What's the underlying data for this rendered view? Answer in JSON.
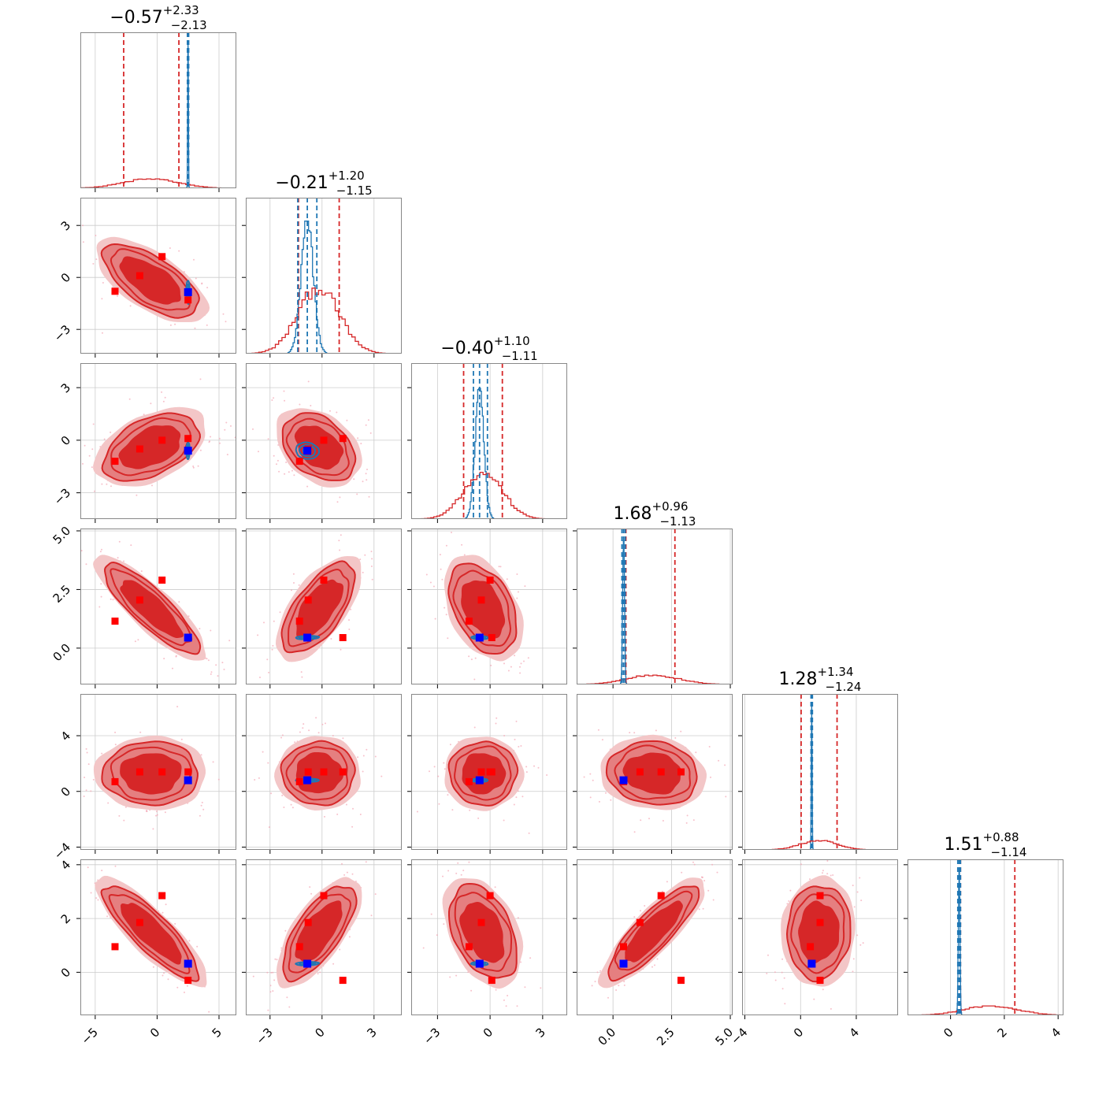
{
  "chart_data": {
    "type": "corner",
    "grid": true,
    "colors": {
      "samples_a": "#d62728",
      "samples_a_fill_inner": "#d62728",
      "samples_a_fill_mid": "#e57f80",
      "samples_a_fill_outer": "#f3c6c7",
      "samples_b": "#1f77b4",
      "truth_a": "#ff0000",
      "truth_b": "#0000ff",
      "axis": "#888888",
      "gridline": "#cccccc"
    },
    "parameters": [
      {
        "id": "p1",
        "title_value": "−0.57",
        "title_plus": "+2.33",
        "title_minus": "−2.13",
        "range": [
          -6.2,
          6.4
        ],
        "ticks": [
          -5,
          0,
          5
        ],
        "tick_labels": [
          "−5",
          "0",
          "5"
        ],
        "median": -0.57,
        "q_low": -2.7,
        "q_high": 1.76,
        "b_median": 2.5,
        "b_q_low": 2.45,
        "b_q_high": 2.55,
        "a_mean": -0.5,
        "a_sd": 2.2,
        "b_mean": 2.5,
        "b_sd": 0.03,
        "truth_a": [
          -3.4,
          -1.4,
          0.4,
          2.5
        ],
        "truth_b": 2.5
      },
      {
        "id": "p2",
        "title_value": "−0.21",
        "title_plus": "+1.20",
        "title_minus": "−1.15",
        "range": [
          -4.4,
          4.6
        ],
        "ticks": [
          -3,
          0,
          3
        ],
        "tick_labels": [
          "−3",
          "0",
          "3"
        ],
        "median": -0.21,
        "q_low": -1.36,
        "q_high": 0.99,
        "b_median": -0.85,
        "b_q_low": -1.4,
        "b_q_high": -0.3,
        "a_mean": -0.2,
        "a_sd": 1.2,
        "b_mean": -0.85,
        "b_sd": 0.35,
        "truth_a": [
          -1.3,
          -0.8,
          0.1,
          1.2
        ],
        "truth_b": -0.85
      },
      {
        "id": "p3",
        "title_value": "−0.40",
        "title_plus": "+1.10",
        "title_minus": "−1.11",
        "range": [
          -4.5,
          4.4
        ],
        "ticks": [
          -3,
          0,
          3
        ],
        "tick_labels": [
          "−3",
          "0",
          "3"
        ],
        "median": -0.4,
        "q_low": -1.51,
        "q_high": 0.7,
        "b_median": -0.6,
        "b_q_low": -0.95,
        "b_q_high": -0.15,
        "a_mean": -0.4,
        "a_sd": 1.1,
        "b_mean": -0.6,
        "b_sd": 0.25,
        "truth_a": [
          -1.2,
          -0.5,
          0.0,
          0.1
        ],
        "truth_b": -0.6
      },
      {
        "id": "p4",
        "title_value": "1.68",
        "title_plus": "+0.96",
        "title_minus": "−1.13",
        "range": [
          -1.55,
          5.1
        ],
        "ticks": [
          0.0,
          2.5,
          5.0
        ],
        "tick_labels": [
          "0.0",
          "2.5",
          "5.0"
        ],
        "median": 1.68,
        "q_low": 0.55,
        "q_high": 2.64,
        "b_median": 0.45,
        "b_q_low": 0.38,
        "b_q_high": 0.52,
        "a_mean": 1.7,
        "a_sd": 1.1,
        "b_mean": 0.45,
        "b_sd": 0.04,
        "truth_a": [
          0.45,
          1.15,
          2.05,
          2.9
        ],
        "truth_b": 0.45
      },
      {
        "id": "p5",
        "title_value": "1.28",
        "title_plus": "+1.34",
        "title_minus": "−1.24",
        "range": [
          -4.2,
          7.0
        ],
        "ticks": [
          -4,
          0,
          4
        ],
        "tick_labels": [
          "−4",
          "0",
          "4"
        ],
        "median": 1.28,
        "q_low": 0.04,
        "q_high": 2.62,
        "b_median": 0.8,
        "b_q_low": 0.75,
        "b_q_high": 0.85,
        "a_mean": 1.3,
        "a_sd": 1.3,
        "b_mean": 0.8,
        "b_sd": 0.03,
        "truth_a": [
          0.7,
          1.4,
          1.4,
          1.4
        ],
        "truth_b": 0.8
      },
      {
        "id": "p6",
        "title_value": "1.51",
        "title_plus": "+0.88",
        "title_minus": "−1.14",
        "range": [
          -1.6,
          4.2
        ],
        "ticks": [
          0,
          2,
          4
        ],
        "tick_labels": [
          "0",
          "2",
          "4"
        ],
        "median": 1.51,
        "q_low": 0.37,
        "q_high": 2.39,
        "b_median": 0.32,
        "b_q_low": 0.27,
        "b_q_high": 0.37,
        "a_mean": 1.5,
        "a_sd": 1.0,
        "b_mean": 0.32,
        "b_sd": 0.03,
        "truth_a": [
          -0.3,
          0.95,
          1.85,
          2.85
        ],
        "truth_b": 0.32
      }
    ],
    "pairs": [
      {
        "row": 1,
        "col": 0,
        "corr": -0.65
      },
      {
        "row": 2,
        "col": 0,
        "corr": 0.45
      },
      {
        "row": 2,
        "col": 1,
        "corr": -0.35
      },
      {
        "row": 3,
        "col": 0,
        "corr": -0.85
      },
      {
        "row": 3,
        "col": 1,
        "corr": 0.65
      },
      {
        "row": 3,
        "col": 2,
        "corr": -0.4
      },
      {
        "row": 4,
        "col": 0,
        "corr": 0.0
      },
      {
        "row": 4,
        "col": 1,
        "corr": 0.0
      },
      {
        "row": 4,
        "col": 2,
        "corr": 0.0
      },
      {
        "row": 4,
        "col": 3,
        "corr": -0.1
      },
      {
        "row": 5,
        "col": 0,
        "corr": -0.85
      },
      {
        "row": 5,
        "col": 1,
        "corr": 0.7
      },
      {
        "row": 5,
        "col": 2,
        "corr": -0.4
      },
      {
        "row": 5,
        "col": 3,
        "corr": 0.85
      },
      {
        "row": 5,
        "col": 4,
        "corr": 0.05
      }
    ]
  }
}
